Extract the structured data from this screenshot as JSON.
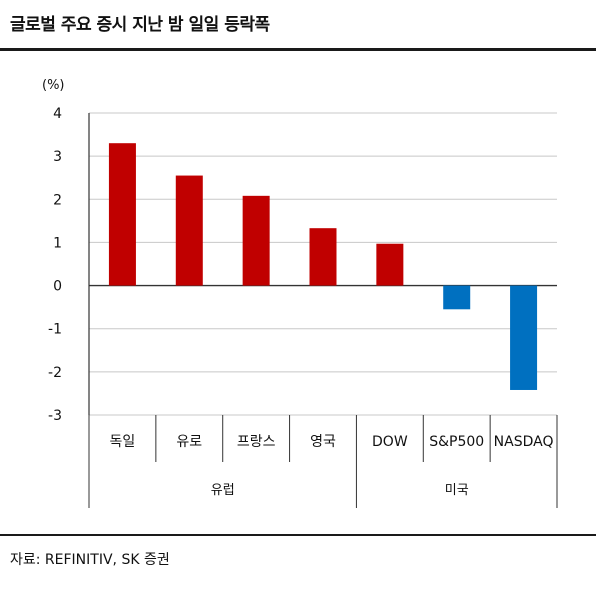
{
  "header": {
    "title": "글로벌 주요 증시 지난 밤 일일 등락폭"
  },
  "footer": {
    "source": "자료: REFINITIV, SK 증권"
  },
  "colors": {
    "positive": "#c00000",
    "negative": "#0070c0",
    "grid": "#c8c8c8",
    "axis": "#333333"
  },
  "chart_data": {
    "type": "bar",
    "unit_label": "(%)",
    "categories": [
      "독일",
      "유로",
      "프랑스",
      "영국",
      "DOW",
      "S&P500",
      "NASDAQ"
    ],
    "values": [
      3.3,
      2.55,
      2.08,
      1.33,
      0.97,
      -0.55,
      -2.42
    ],
    "groups": [
      {
        "label": "유럽",
        "span": 4
      },
      {
        "label": "미국",
        "span": 3
      }
    ],
    "ylim": [
      -3,
      4
    ],
    "yticks": [
      4,
      3,
      2,
      1,
      0,
      -1,
      -2,
      -3
    ],
    "grid": true
  }
}
